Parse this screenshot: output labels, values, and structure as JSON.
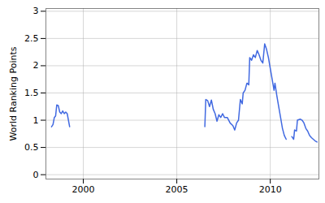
{
  "chart_data": {
    "type": "line",
    "y_label": "World Ranking Points",
    "x": [
      1998.3,
      1998.38,
      1998.45,
      1998.52,
      1998.58,
      1998.66,
      1998.74,
      1998.82,
      1998.9,
      1998.98,
      1999.06,
      1999.14,
      1999.27,
      2003.0,
      2006.5,
      2006.55,
      2006.65,
      2006.75,
      2006.85,
      2006.95,
      2007.05,
      2007.15,
      2007.25,
      2007.35,
      2007.45,
      2007.55,
      2007.7,
      2007.85,
      2008.0,
      2008.1,
      2008.2,
      2008.3,
      2008.4,
      2008.5,
      2008.55,
      2008.65,
      2008.75,
      2008.85,
      2008.9,
      2009.0,
      2009.1,
      2009.2,
      2009.3,
      2009.4,
      2009.5,
      2009.6,
      2009.7,
      2009.8,
      2009.9,
      2010.0,
      2010.1,
      2010.2,
      2010.25,
      2010.35,
      2010.45,
      2010.55,
      2010.65,
      2010.75,
      2010.85,
      2011.0,
      2011.15,
      2011.25,
      2011.3,
      2011.4,
      2011.45,
      2011.6,
      2011.7,
      2011.8,
      2011.9,
      2012.0,
      2012.1,
      2012.2,
      2012.3,
      2012.4,
      2012.5
    ],
    "values": [
      0.88,
      0.92,
      1.05,
      1.08,
      1.28,
      1.27,
      1.15,
      1.12,
      1.17,
      1.12,
      1.15,
      1.12,
      0.88,
      null,
      0.88,
      1.38,
      1.36,
      1.25,
      1.37,
      1.2,
      1.12,
      0.98,
      1.1,
      1.05,
      1.12,
      1.05,
      1.05,
      0.95,
      0.9,
      0.82,
      0.95,
      1.0,
      1.38,
      1.3,
      1.5,
      1.55,
      1.68,
      1.65,
      2.15,
      2.1,
      2.2,
      2.15,
      2.28,
      2.2,
      2.1,
      2.05,
      2.4,
      2.3,
      2.15,
      1.95,
      1.75,
      1.55,
      1.68,
      1.45,
      1.25,
      1.05,
      0.85,
      0.72,
      0.65,
      null,
      0.7,
      0.65,
      0.82,
      0.8,
      1.0,
      1.02,
      1.0,
      0.95,
      0.85,
      0.8,
      0.72,
      0.68,
      0.65,
      0.62,
      0.6
    ],
    "color": "#4169e1",
    "xlim": [
      1998.0,
      2012.6
    ],
    "ylim": [
      -0.08,
      3.05
    ],
    "xticks": [
      2000,
      2005,
      2010
    ],
    "yticks": [
      0,
      0.5,
      1,
      1.5,
      2,
      2.5,
      3
    ],
    "grid": true
  }
}
